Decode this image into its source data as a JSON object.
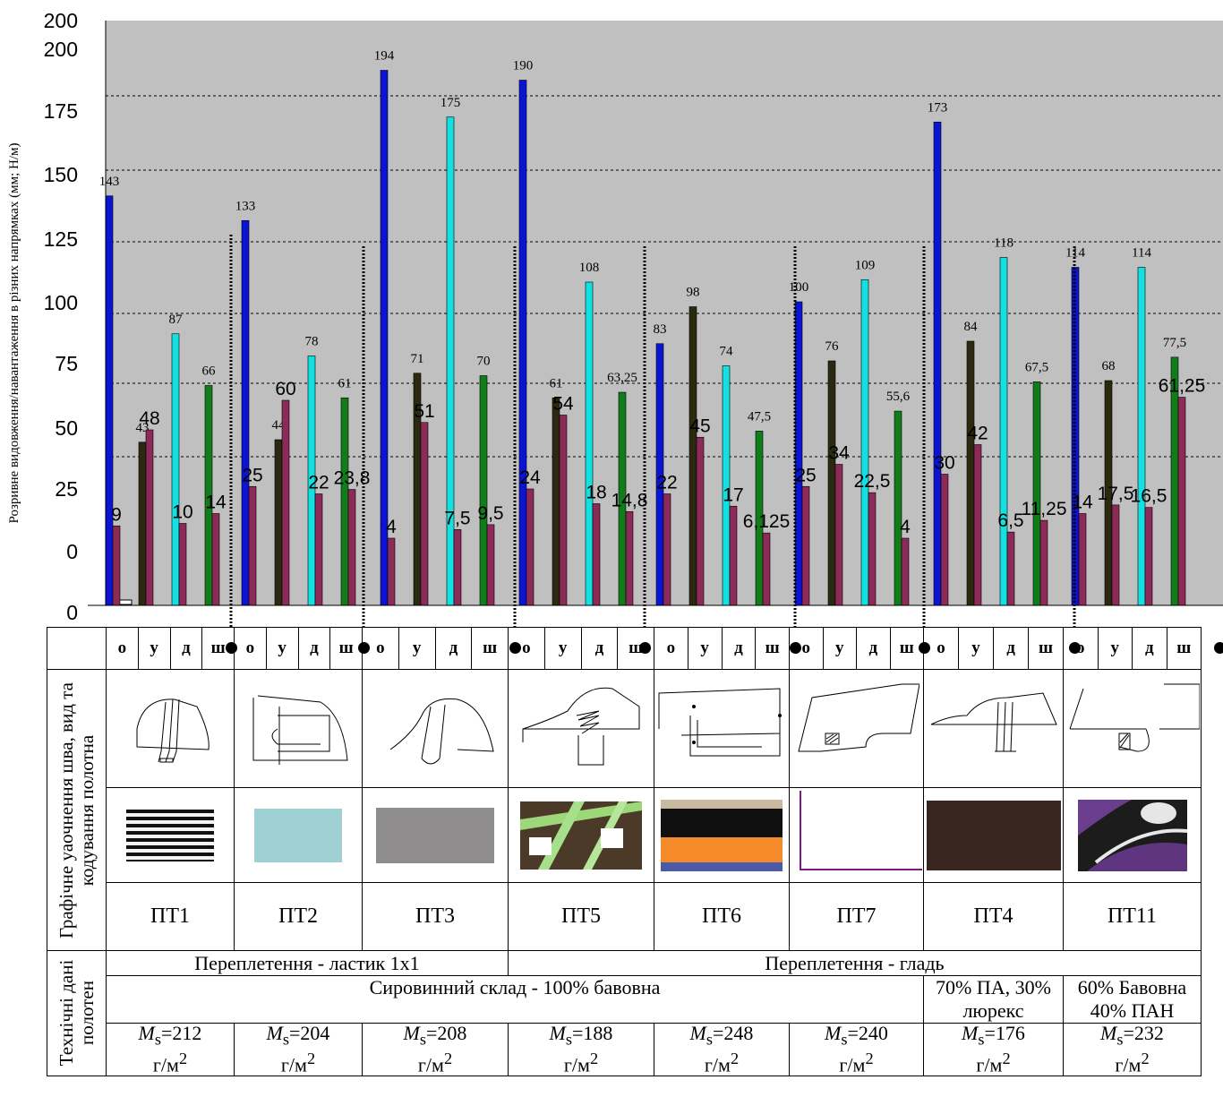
{
  "chart_data": {
    "type": "bar",
    "ylabel": "Розривне видовження/навантаження  в різних напрямках (мм; Н/м)",
    "yticks": [
      "0",
      "0",
      "25",
      "50",
      "75",
      "100",
      "125",
      "150",
      "175",
      "200",
      "200"
    ],
    "grid": true,
    "background": "#c0c0c0",
    "series_colors": [
      "#0a14d2",
      "#2b2a10",
      "#13e0e0",
      "#117d1a",
      "#8c2a58"
    ],
    "groups": [
      {
        "bars": [
          {
            "c": 0,
            "v": 143,
            "label": "143",
            "big": false
          },
          {
            "c": 4,
            "v": 9,
            "label": "9",
            "big": true
          },
          {
            "c": 1,
            "v": 43,
            "label": "43",
            "big": false
          },
          {
            "c": 4,
            "v": 48,
            "label": "48",
            "big": true
          },
          {
            "c": 2,
            "v": 87,
            "label": "87",
            "big": false
          },
          {
            "c": 4,
            "v": 10,
            "label": "10",
            "big": true
          },
          {
            "c": 3,
            "v": 66,
            "label": "66",
            "big": false
          },
          {
            "c": 4,
            "v": 14,
            "label": "14",
            "big": true
          }
        ]
      },
      {
        "bars": [
          {
            "c": 0,
            "v": 133,
            "label": "133",
            "big": false
          },
          {
            "c": 4,
            "v": 25,
            "label": "25",
            "big": true
          },
          {
            "c": 1,
            "v": 44,
            "label": "44",
            "big": false
          },
          {
            "c": 4,
            "v": 60,
            "label": "60",
            "big": true
          },
          {
            "c": 2,
            "v": 78,
            "label": "78",
            "big": false
          },
          {
            "c": 4,
            "v": 22,
            "label": "22",
            "big": true
          },
          {
            "c": 3,
            "v": 61,
            "label": "61",
            "big": false
          },
          {
            "c": 4,
            "v": 23.8,
            "label": "23,8",
            "big": true
          }
        ]
      },
      {
        "bars": [
          {
            "c": 0,
            "v": 194,
            "label": "194",
            "big": false
          },
          {
            "c": 4,
            "v": 4,
            "label": "4",
            "big": true
          },
          {
            "c": 1,
            "v": 71,
            "label": "71",
            "big": false
          },
          {
            "c": 4,
            "v": 51,
            "label": "51",
            "big": true
          },
          {
            "c": 2,
            "v": 175,
            "label": "175",
            "big": false
          },
          {
            "c": 4,
            "v": 7.5,
            "label": "7,5",
            "big": true
          },
          {
            "c": 3,
            "v": 70,
            "label": "70",
            "big": false
          },
          {
            "c": 4,
            "v": 9.5,
            "label": "9,5",
            "big": true
          }
        ]
      },
      {
        "bars": [
          {
            "c": 0,
            "v": 190,
            "label": "190",
            "big": false
          },
          {
            "c": 4,
            "v": 24,
            "label": "24",
            "big": true
          },
          {
            "c": 1,
            "v": 61,
            "label": "61",
            "big": false
          },
          {
            "c": 4,
            "v": 54,
            "label": "54",
            "big": true
          },
          {
            "c": 2,
            "v": 108,
            "label": "108",
            "big": false
          },
          {
            "c": 4,
            "v": 18,
            "label": "18",
            "big": true
          },
          {
            "c": 3,
            "v": 63.25,
            "label": "63,25",
            "big": false
          },
          {
            "c": 4,
            "v": 14.8,
            "label": "14,8",
            "big": true
          }
        ]
      },
      {
        "bars": [
          {
            "c": 0,
            "v": 83,
            "label": "83",
            "big": false
          },
          {
            "c": 4,
            "v": 22,
            "label": "22",
            "big": true
          },
          {
            "c": 1,
            "v": 98,
            "label": "98",
            "big": false
          },
          {
            "c": 4,
            "v": 45,
            "label": "45",
            "big": true
          },
          {
            "c": 2,
            "v": 74,
            "label": "74",
            "big": false
          },
          {
            "c": 4,
            "v": 17,
            "label": "17",
            "big": true
          },
          {
            "c": 3,
            "v": 47.5,
            "label": "47,5",
            "big": false
          },
          {
            "c": 4,
            "v": 6.125,
            "label": "6,125",
            "big": true
          }
        ]
      },
      {
        "bars": [
          {
            "c": 0,
            "v": 100,
            "label": "100",
            "big": false
          },
          {
            "c": 4,
            "v": 25,
            "label": "25",
            "big": true
          },
          {
            "c": 1,
            "v": 76,
            "label": "76",
            "big": false
          },
          {
            "c": 4,
            "v": 34,
            "label": "34",
            "big": true
          },
          {
            "c": 2,
            "v": 109,
            "label": "109",
            "big": false
          },
          {
            "c": 4,
            "v": 22.5,
            "label": "22,5",
            "big": true
          },
          {
            "c": 3,
            "v": 55.6,
            "label": "55,6",
            "big": false
          },
          {
            "c": 4,
            "v": 4,
            "label": "4",
            "big": true
          }
        ]
      },
      {
        "bars": [
          {
            "c": 0,
            "v": 173,
            "label": "173",
            "big": false
          },
          {
            "c": 4,
            "v": 30,
            "label": "30",
            "big": true
          },
          {
            "c": 1,
            "v": 84,
            "label": "84",
            "big": false
          },
          {
            "c": 4,
            "v": 42,
            "label": "42",
            "big": true
          },
          {
            "c": 2,
            "v": 118,
            "label": "118",
            "big": false
          },
          {
            "c": 4,
            "v": 6.5,
            "label": "6,5",
            "big": true
          },
          {
            "c": 3,
            "v": 67.5,
            "label": "67,5",
            "big": false
          },
          {
            "c": 4,
            "v": 11.25,
            "label": "11,25",
            "big": true
          }
        ]
      },
      {
        "bars": [
          {
            "c": 0,
            "v": 114,
            "label": "114",
            "big": false
          },
          {
            "c": 4,
            "v": 14,
            "label": "14",
            "big": true
          },
          {
            "c": 1,
            "v": 68,
            "label": "68",
            "big": false
          },
          {
            "c": 4,
            "v": 17.5,
            "label": "17,5",
            "big": true
          },
          {
            "c": 2,
            "v": 114,
            "label": "114",
            "big": false
          },
          {
            "c": 4,
            "v": 16.5,
            "label": "16,5",
            "big": true
          },
          {
            "c": 3,
            "v": 77.5,
            "label": "77,5",
            "big": false
          },
          {
            "c": 4,
            "v": 61.25,
            "label": "61,25",
            "big": true
          }
        ]
      }
    ]
  },
  "table": {
    "directions": [
      "о",
      "у",
      "д",
      "ш"
    ],
    "side_label_top": "Графічне уаочнення шва, вид та кодування полотна",
    "side_label_bottom": "Технічні дані полотен",
    "codes": [
      "ПТ1",
      "ПТ2",
      "ПТ3",
      "ПТ5",
      "ПТ6",
      "ПТ7",
      "ПТ4",
      "ПТ11"
    ],
    "weave_rib": "Переплетення -  ластик 1х1",
    "weave_plain": "Переплетення - гладь",
    "composition_main": "Сировинний склад - 100% бавовна",
    "composition_pt4": "70% ПА, 30% люрекс",
    "composition_pt11": "60% Бавовна 40% ПАН",
    "ms_symbol": "M",
    "ms_sub": "s",
    "ms_values": [
      "=212",
      "=204",
      "=208",
      "=188",
      "=248",
      "=240",
      "=176",
      "=232"
    ],
    "ms_unit": "г/м",
    "ms_unit_sup": "2"
  }
}
